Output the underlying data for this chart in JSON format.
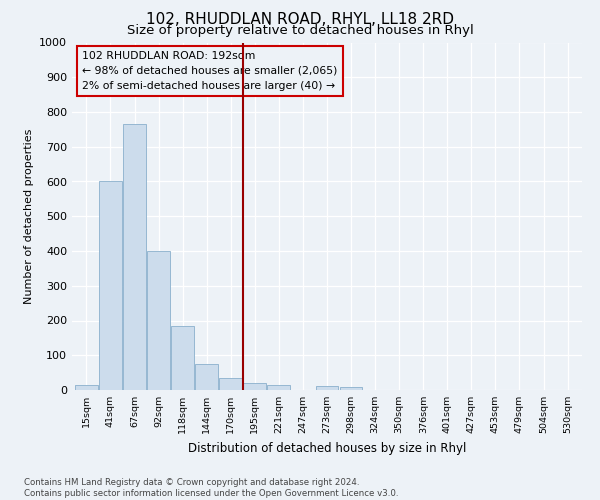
{
  "title1": "102, RHUDDLAN ROAD, RHYL, LL18 2RD",
  "title2": "Size of property relative to detached houses in Rhyl",
  "xlabel": "Distribution of detached houses by size in Rhyl",
  "ylabel": "Number of detached properties",
  "bin_labels": [
    "15sqm",
    "41sqm",
    "67sqm",
    "92sqm",
    "118sqm",
    "144sqm",
    "170sqm",
    "195sqm",
    "221sqm",
    "247sqm",
    "273sqm",
    "298sqm",
    "324sqm",
    "350sqm",
    "376sqm",
    "401sqm",
    "427sqm",
    "453sqm",
    "479sqm",
    "504sqm",
    "530sqm"
  ],
  "bar_heights": [
    15,
    600,
    765,
    400,
    185,
    75,
    35,
    20,
    15,
    0,
    12,
    8,
    0,
    0,
    0,
    0,
    0,
    0,
    0,
    0,
    0
  ],
  "bar_color": "#ccdcec",
  "bar_edgecolor": "#8ab0cc",
  "vline_color": "#990000",
  "annotation_text": "102 RHUDDLAN ROAD: 192sqm\n← 98% of detached houses are smaller (2,065)\n2% of semi-detached houses are larger (40) →",
  "annotation_box_edgecolor": "#cc0000",
  "ylim": [
    0,
    1000
  ],
  "yticks": [
    0,
    100,
    200,
    300,
    400,
    500,
    600,
    700,
    800,
    900,
    1000
  ],
  "footer_text": "Contains HM Land Registry data © Crown copyright and database right 2024.\nContains public sector information licensed under the Open Government Licence v3.0.",
  "bg_color": "#edf2f7",
  "grid_color": "#ffffff",
  "title1_fontsize": 11,
  "title2_fontsize": 9.5
}
